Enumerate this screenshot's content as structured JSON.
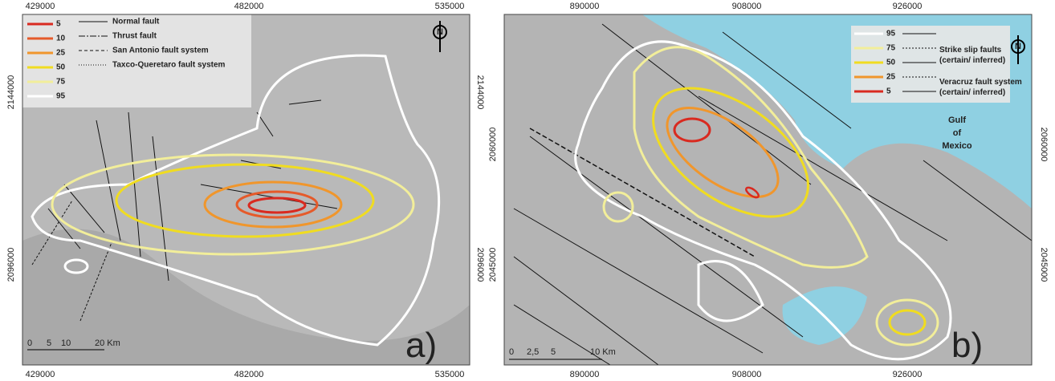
{
  "panels": [
    {
      "label": "a)",
      "north": "N",
      "coords": {
        "top": [
          "429000",
          "482000",
          "535000"
        ],
        "bottom": [
          "429000",
          "482000",
          "535000"
        ],
        "left": [
          "2144000",
          "2096000"
        ],
        "right": [
          "2144000",
          "2096000"
        ]
      },
      "legend": {
        "contours": [
          "5",
          "10",
          "25",
          "50",
          "75",
          "95"
        ],
        "faults": [
          "Normal fault",
          "Thrust fault",
          "San Antonio fault system",
          "Taxco-Queretaro fault system"
        ]
      },
      "scale": [
        "0",
        "5",
        "10",
        "20 Km"
      ]
    },
    {
      "label": "b)",
      "north": "N",
      "sea": [
        "Gulf",
        "of",
        "Mexico"
      ],
      "coords": {
        "top": [
          "890000",
          "908000",
          "926000"
        ],
        "bottom": [
          "890000",
          "908000",
          "926000"
        ],
        "left": [
          "2060000",
          "2045000"
        ],
        "right": [
          "2060000",
          "2045000"
        ]
      },
      "legend": {
        "contours": [
          "95",
          "75",
          "50",
          "25",
          "5"
        ],
        "faults": [
          "Strike slip faults (certain/ inferred)",
          "Veracruz fault system (certain/ inferred)"
        ]
      },
      "scale": [
        "0",
        "2,5",
        "5",
        "10 Km"
      ]
    }
  ]
}
